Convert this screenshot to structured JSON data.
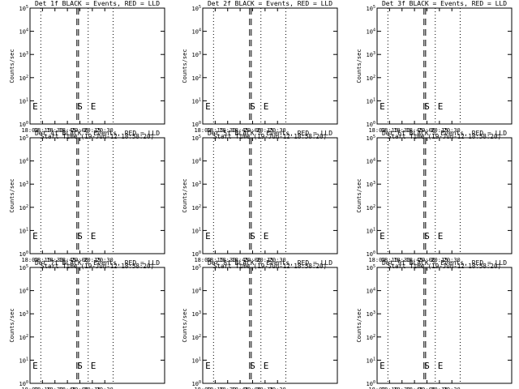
{
  "chart_data": {
    "type": "line",
    "grid": {
      "rows": 3,
      "cols": 3
    },
    "panels": [
      {
        "title": "Det 1f BLACK = Events, RED = LLD"
      },
      {
        "title": "Det 2f BLACK = Events, RED = LLD"
      },
      {
        "title": "Det 3f BLACK = Events, RED = LLD"
      },
      {
        "title": "Det 4f BLACK = Events, RED = LLD"
      },
      {
        "title": "Det 5f BLACK = Events, RED = LLD"
      },
      {
        "title": "Det 6f BLACK = Events, RED = LLD"
      },
      {
        "title": "Det 7f BLACK = Events, RED = LLD"
      },
      {
        "title": "Det 8f BLACK = Events, RED = LLD"
      },
      {
        "title": "Det 9f BLACK = Events, RED = LLD"
      }
    ],
    "xlabel": "Start Time (19-Jun-12 18:58:20)",
    "ylabel": "Counts/sec",
    "xlim": [
      "18:00",
      "20:42"
    ],
    "x_ticks": [
      "18:00",
      "18:15",
      "18:30",
      "18:45",
      "20:00",
      "20:15",
      "20:30"
    ],
    "y_scale": "log",
    "y_ticks": [
      {
        "base": "10",
        "exp": "0"
      },
      {
        "base": "10",
        "exp": "1"
      },
      {
        "base": "10",
        "exp": "2"
      },
      {
        "base": "10",
        "exp": "3"
      },
      {
        "base": "10",
        "exp": "4"
      },
      {
        "base": "10",
        "exp": "5"
      }
    ],
    "dotted_lines_x": [
      "18:13",
      "20:10",
      "20:40"
    ],
    "dashed_lines_x": [
      "19:42",
      "19:52"
    ],
    "markers": [
      {
        "label": "E",
        "x": "18:03"
      },
      {
        "label": "S",
        "x": "19:44"
      },
      {
        "label": "E",
        "x": "20:13"
      }
    ],
    "series": []
  }
}
